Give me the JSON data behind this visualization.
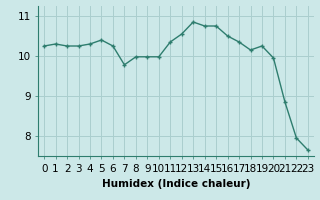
{
  "x": [
    0,
    1,
    2,
    3,
    4,
    5,
    6,
    7,
    8,
    9,
    10,
    11,
    12,
    13,
    14,
    15,
    16,
    17,
    18,
    19,
    20,
    21,
    22,
    23
  ],
  "y": [
    10.25,
    10.3,
    10.25,
    10.25,
    10.3,
    10.4,
    10.25,
    9.78,
    9.98,
    9.98,
    9.98,
    10.35,
    10.55,
    10.85,
    10.75,
    10.75,
    10.5,
    10.35,
    10.15,
    10.25,
    9.95,
    8.85,
    7.95,
    7.65
  ],
  "line_color": "#2e7d6e",
  "marker": "+",
  "marker_color": "#2e7d6e",
  "bg_color": "#cce8e8",
  "grid_color": "#aacece",
  "xlabel": "Humidex (Indice chaleur)",
  "ylim": [
    7.5,
    11.25
  ],
  "yticks": [
    8,
    9,
    10,
    11
  ],
  "xticks": [
    0,
    1,
    2,
    3,
    4,
    5,
    6,
    7,
    8,
    9,
    10,
    11,
    12,
    13,
    14,
    15,
    16,
    17,
    18,
    19,
    20,
    21,
    22,
    23
  ],
  "xlabel_fontsize": 7.5,
  "tick_fontsize": 7.5,
  "line_width": 1.0,
  "marker_size": 3.5
}
